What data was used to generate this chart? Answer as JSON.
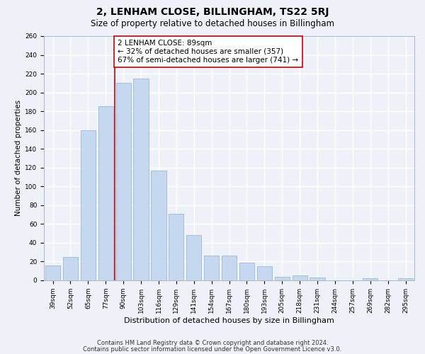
{
  "title": "2, LENHAM CLOSE, BILLINGHAM, TS22 5RJ",
  "subtitle": "Size of property relative to detached houses in Billingham",
  "xlabel": "Distribution of detached houses by size in Billingham",
  "ylabel": "Number of detached properties",
  "categories": [
    "39sqm",
    "52sqm",
    "65sqm",
    "77sqm",
    "90sqm",
    "103sqm",
    "116sqm",
    "129sqm",
    "141sqm",
    "154sqm",
    "167sqm",
    "180sqm",
    "193sqm",
    "205sqm",
    "218sqm",
    "231sqm",
    "244sqm",
    "257sqm",
    "269sqm",
    "282sqm",
    "295sqm"
  ],
  "values": [
    16,
    25,
    160,
    185,
    210,
    215,
    117,
    71,
    48,
    26,
    26,
    19,
    15,
    4,
    5,
    3,
    0,
    0,
    2,
    0,
    2
  ],
  "bar_color": "#c5d8f0",
  "bar_edge_color": "#9ab8d8",
  "bar_width": 0.85,
  "vline_color": "#cc0000",
  "annotation_text": "2 LENHAM CLOSE: 89sqm\n← 32% of detached houses are smaller (357)\n67% of semi-detached houses are larger (741) →",
  "annotation_box_color": "#ffffff",
  "annotation_box_edge_color": "#cc0000",
  "ylim": [
    0,
    260
  ],
  "yticks": [
    0,
    20,
    40,
    60,
    80,
    100,
    120,
    140,
    160,
    180,
    200,
    220,
    240,
    260
  ],
  "footer1": "Contains HM Land Registry data © Crown copyright and database right 2024.",
  "footer2": "Contains public sector information licensed under the Open Government Licence v3.0.",
  "bg_color": "#eef2f8",
  "grid_color": "#ffffff",
  "title_fontsize": 10,
  "subtitle_fontsize": 8.5,
  "xlabel_fontsize": 8,
  "ylabel_fontsize": 7.5,
  "tick_fontsize": 6.5,
  "annotation_fontsize": 7.5,
  "footer_fontsize": 6
}
